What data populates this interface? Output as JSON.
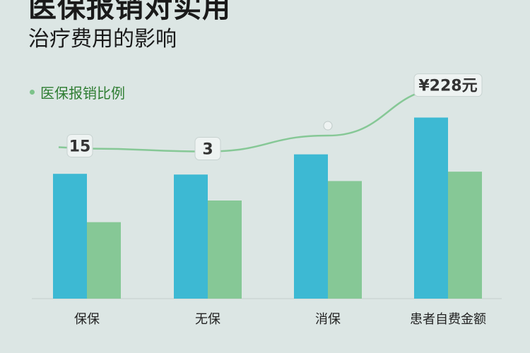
{
  "title": "医保报销对实用",
  "subtitle": "治疗费用的影响",
  "legend": {
    "label": "医保报销比例"
  },
  "colors": {
    "bar_a": "#3db9d3",
    "bar_b": "#86c896",
    "line": "#86c896",
    "background": "#dce6e4"
  },
  "chart_data": {
    "type": "bar",
    "categories": [
      "保保",
      "无保",
      "消保",
      "患者自费金额"
    ],
    "series": [
      {
        "values": [
          173,
          172,
          200,
          251
        ],
        "color": "#3db9d3"
      },
      {
        "values": [
          106,
          136,
          163,
          176
        ],
        "color": "#86c896"
      }
    ],
    "line": {
      "name": "医保报销比例",
      "values": [
        208,
        204,
        226,
        292
      ],
      "point_labels": [
        "15",
        "3",
        "",
        "¥228元"
      ]
    },
    "ylim": [
      0,
      320
    ],
    "grid": false
  }
}
